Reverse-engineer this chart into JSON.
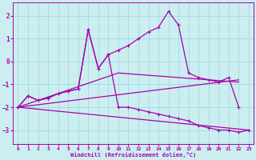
{
  "xlabel": "Windchill (Refroidissement éolien,°C)",
  "bg_color": "#cceef0",
  "grid_color": "#99dde0",
  "line_color": "#aa00aa",
  "xlim": [
    -0.5,
    23.5
  ],
  "ylim": [
    -3.6,
    2.6
  ],
  "xticks": [
    0,
    1,
    2,
    3,
    4,
    5,
    6,
    7,
    8,
    9,
    10,
    11,
    12,
    13,
    14,
    15,
    16,
    17,
    18,
    19,
    20,
    21,
    22,
    23
  ],
  "yticks": [
    -3,
    -2,
    -1,
    0,
    1,
    2
  ],
  "series1_x": [
    0,
    1,
    2,
    3,
    4,
    5,
    6,
    7,
    8,
    9,
    10,
    11,
    12,
    13,
    14,
    15,
    16,
    17,
    18,
    19,
    20,
    21,
    22
  ],
  "series1_y": [
    -2.0,
    -1.5,
    -1.7,
    -1.6,
    -1.4,
    -1.3,
    -1.2,
    1.4,
    -0.3,
    0.3,
    0.5,
    0.7,
    1.0,
    1.3,
    1.5,
    2.2,
    1.6,
    -0.5,
    -0.7,
    -0.8,
    -0.9,
    -0.7,
    -2.0
  ],
  "series2_x": [
    0,
    1,
    2,
    3,
    4,
    5,
    6,
    7,
    8,
    9,
    10,
    11,
    12,
    13,
    14,
    15,
    16,
    17,
    18,
    19,
    20,
    21,
    22,
    23
  ],
  "series2_y": [
    -2.0,
    -1.5,
    -1.7,
    -1.6,
    -1.4,
    -1.3,
    -1.2,
    1.4,
    -0.3,
    0.3,
    -2.0,
    -2.0,
    -2.1,
    -2.2,
    -2.3,
    -2.4,
    -2.5,
    -2.6,
    -2.8,
    -2.9,
    -3.0,
    -3.0,
    -3.1,
    -3.0
  ],
  "series3_x": [
    0,
    22
  ],
  "series3_y": [
    -2.0,
    -0.8
  ],
  "series4_x": [
    0,
    23
  ],
  "series4_y": [
    -2.0,
    -3.0
  ],
  "series5_x": [
    0,
    10,
    19,
    22
  ],
  "series5_y": [
    -2.0,
    -0.5,
    -0.8,
    -0.9
  ]
}
